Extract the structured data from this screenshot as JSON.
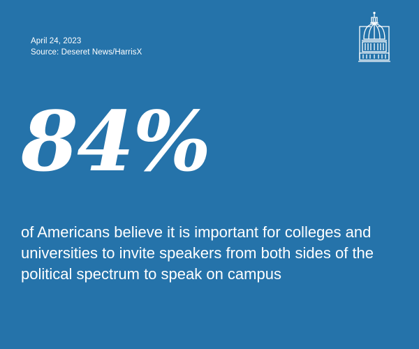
{
  "card": {
    "date": "April 24, 2023",
    "source": "Source: Deseret News/HarrisX",
    "stat": "84%",
    "statement": "of Americans believe it is important for colleges and universities to invite speakers from both sides of the political spectrum to speak on campus"
  },
  "colors": {
    "background": "#2573aa",
    "text": "#ffffff"
  },
  "icons": {
    "logo": "capitol-dome-icon"
  }
}
